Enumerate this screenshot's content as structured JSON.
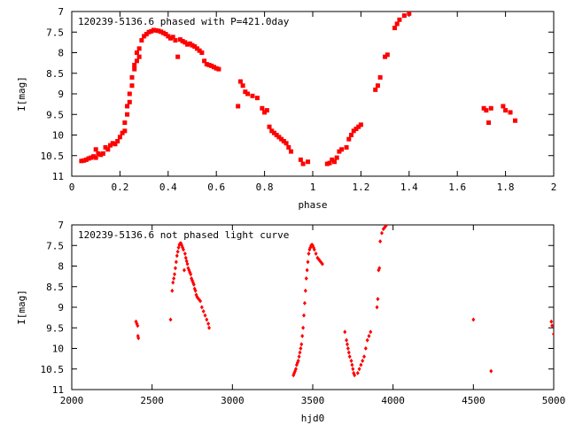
{
  "chart_data": [
    {
      "type": "scatter",
      "title": "120239-5136.6 phased with P=421.0day",
      "xlabel": "phase",
      "ylabel": "I[mag]",
      "xlim": [
        0,
        2
      ],
      "ylim": [
        11,
        7
      ],
      "y_inverted": true,
      "xticks": [
        "0",
        "0.2",
        "0.4",
        "0.6",
        "0.8",
        "1",
        "1.2",
        "1.4",
        "1.6",
        "1.8",
        "2"
      ],
      "yticks": [
        "7",
        "7.5",
        "8",
        "8.5",
        "9",
        "9.5",
        "10",
        "10.5",
        "11"
      ],
      "grid": false,
      "marker_color": "#ff0000",
      "series": [
        {
          "x": [
            0.04,
            0.05,
            0.06,
            0.07,
            0.08,
            0.09,
            0.1,
            0.1,
            0.11,
            0.12,
            0.13,
            0.14,
            0.15,
            0.16,
            0.17,
            0.18,
            0.19,
            0.2,
            0.21,
            0.22,
            0.22,
            0.23,
            0.23,
            0.24,
            0.24,
            0.25,
            0.25,
            0.26,
            0.26,
            0.27,
            0.27,
            0.28,
            0.28,
            0.29,
            0.3,
            0.31,
            0.32,
            0.33,
            0.34,
            0.35,
            0.36,
            0.37,
            0.38,
            0.39,
            0.4,
            0.41,
            0.42,
            0.43,
            0.44,
            0.45,
            0.46,
            0.47,
            0.48,
            0.49,
            0.5,
            0.51,
            0.52,
            0.53,
            0.54,
            0.55,
            0.56,
            0.57,
            0.58,
            0.59,
            0.6,
            0.61,
            0.69,
            0.7,
            0.71,
            0.72,
            0.73,
            0.75,
            0.77,
            0.79,
            0.8,
            0.81,
            0.82,
            0.83,
            0.84,
            0.85,
            0.86,
            0.87,
            0.88,
            0.89,
            0.9,
            0.91,
            0.95,
            0.96,
            0.98,
            1.06,
            1.07,
            1.08,
            1.09,
            1.1,
            1.11,
            1.12,
            1.14,
            1.15,
            1.16,
            1.17,
            1.18,
            1.19,
            1.2,
            1.26,
            1.27,
            1.28,
            1.3,
            1.31,
            1.34,
            1.35,
            1.36,
            1.38,
            1.4,
            1.71,
            1.72,
            1.73,
            1.74,
            1.79,
            1.8,
            1.82,
            1.84
          ],
          "y": [
            10.63,
            10.62,
            10.6,
            10.57,
            10.55,
            10.52,
            10.35,
            10.55,
            10.45,
            10.48,
            10.45,
            10.3,
            10.35,
            10.25,
            10.2,
            10.22,
            10.15,
            10.05,
            9.95,
            9.7,
            9.9,
            9.5,
            9.3,
            9.0,
            9.2,
            8.6,
            8.8,
            8.3,
            8.4,
            8.0,
            8.2,
            7.9,
            8.1,
            7.7,
            7.6,
            7.55,
            7.5,
            7.48,
            7.45,
            7.46,
            7.47,
            7.49,
            7.52,
            7.55,
            7.6,
            7.65,
            7.62,
            7.7,
            8.1,
            7.68,
            7.72,
            7.75,
            7.8,
            7.78,
            7.82,
            7.85,
            7.9,
            7.95,
            8.0,
            8.2,
            8.28,
            8.3,
            8.32,
            8.35,
            8.38,
            8.4,
            9.3,
            8.7,
            8.8,
            8.95,
            9.0,
            9.05,
            9.1,
            9.35,
            9.45,
            9.4,
            9.8,
            9.9,
            9.95,
            10.0,
            10.05,
            10.1,
            10.15,
            10.2,
            10.3,
            10.4,
            10.6,
            10.7,
            10.65,
            10.7,
            10.68,
            10.6,
            10.65,
            10.55,
            10.4,
            10.35,
            10.3,
            10.1,
            10.0,
            9.9,
            9.85,
            9.8,
            9.75,
            8.9,
            8.8,
            8.6,
            8.1,
            8.05,
            7.4,
            7.3,
            7.2,
            7.1,
            7.05,
            9.35,
            9.4,
            9.7,
            9.35,
            9.3,
            9.4,
            9.45,
            9.65
          ]
        }
      ]
    },
    {
      "type": "scatter",
      "title": "120239-5136.6 not phased light curve",
      "xlabel": "hjd0",
      "ylabel": "I[mag]",
      "xlim": [
        2000,
        5000
      ],
      "ylim": [
        11,
        7
      ],
      "y_inverted": true,
      "xticks": [
        "2000",
        "2500",
        "3000",
        "3500",
        "4000",
        "4500",
        "5000"
      ],
      "yticks": [
        "7",
        "7.5",
        "8",
        "8.5",
        "9",
        "9.5",
        "10",
        "10.5",
        "11"
      ],
      "grid": false,
      "marker_color": "#ff0000",
      "series": [
        {
          "x": [
            2400,
            2405,
            2410,
            2412,
            2415,
            2615,
            2625,
            2630,
            2635,
            2640,
            2645,
            2650,
            2655,
            2660,
            2665,
            2670,
            2675,
            2680,
            2685,
            2690,
            2695,
            2700,
            2705,
            2710,
            2715,
            2720,
            2725,
            2730,
            2735,
            2740,
            2745,
            2750,
            2755,
            2760,
            2765,
            2770,
            2775,
            2780,
            2790,
            2800,
            2810,
            2820,
            2830,
            2840,
            2850,
            2855,
            3380,
            3385,
            3390,
            3395,
            3400,
            3405,
            3410,
            3415,
            3420,
            3425,
            3430,
            3435,
            3440,
            3445,
            3450,
            3455,
            3460,
            3465,
            3470,
            3475,
            3480,
            3485,
            3490,
            3495,
            3500,
            3505,
            3510,
            3520,
            3530,
            3540,
            3550,
            3560,
            3700,
            3710,
            3715,
            3720,
            3725,
            3730,
            3740,
            3745,
            3750,
            3755,
            3760,
            3780,
            3790,
            3800,
            3810,
            3820,
            3830,
            3840,
            3850,
            3860,
            3900,
            3905,
            3910,
            3915,
            3920,
            3930,
            3940,
            3950,
            3960,
            4500,
            4610,
            4985,
            4990,
            5000
          ],
          "y": [
            9.35,
            9.4,
            9.45,
            9.7,
            9.75,
            9.3,
            8.6,
            8.4,
            8.3,
            8.2,
            8.05,
            7.9,
            7.75,
            7.65,
            7.55,
            7.48,
            7.45,
            7.45,
            7.5,
            7.55,
            7.6,
            8.1,
            7.7,
            7.8,
            7.88,
            7.95,
            8.05,
            8.1,
            8.15,
            8.2,
            8.3,
            8.35,
            8.4,
            8.45,
            8.55,
            8.6,
            8.7,
            8.75,
            8.8,
            8.85,
            9.0,
            9.1,
            9.2,
            9.3,
            9.4,
            9.5,
            10.65,
            10.6,
            10.55,
            10.5,
            10.4,
            10.35,
            10.3,
            10.2,
            10.1,
            10.0,
            9.9,
            9.7,
            9.5,
            9.2,
            8.9,
            8.6,
            8.3,
            8.1,
            7.9,
            7.7,
            7.6,
            7.55,
            7.5,
            7.48,
            7.5,
            7.55,
            7.6,
            7.7,
            7.8,
            7.85,
            7.9,
            7.95,
            9.6,
            9.8,
            9.9,
            10.0,
            10.1,
            10.2,
            10.3,
            10.4,
            10.5,
            10.6,
            10.65,
            10.6,
            10.5,
            10.4,
            10.3,
            10.2,
            10.0,
            9.8,
            9.7,
            9.6,
            9.0,
            8.8,
            8.1,
            8.05,
            7.4,
            7.2,
            7.1,
            7.05,
            7.0,
            9.3,
            10.55,
            9.35,
            9.45,
            9.65
          ]
        }
      ]
    }
  ]
}
